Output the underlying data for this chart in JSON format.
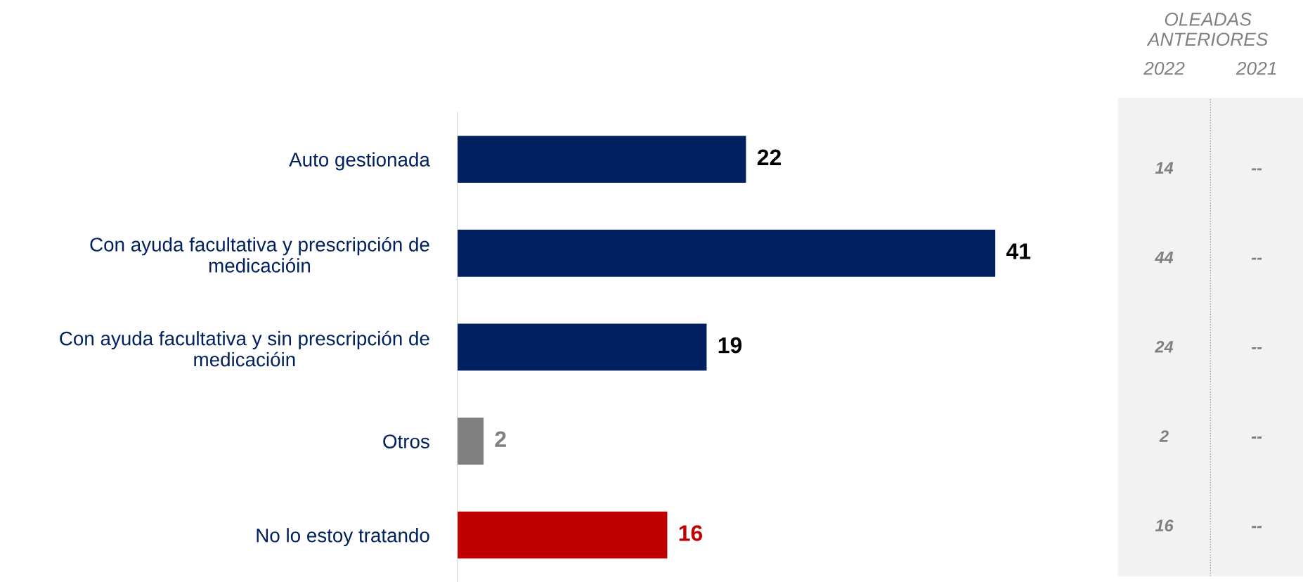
{
  "chart_data": [
    {
      "type": "bar",
      "orientation": "horizontal",
      "categories": [
        "Auto gestionada",
        "Con ayuda facultativa y prescripción de medicacióin",
        "Con ayuda facultativa y sin prescripción de medicacióin",
        "Otros",
        "No lo estoy tratando"
      ],
      "values": [
        22,
        41,
        19,
        2,
        16
      ],
      "colors": [
        "#002060",
        "#002060",
        "#002060",
        "#808080",
        "#c00000"
      ],
      "data_labels": true,
      "tick_labels": "y",
      "grid": false,
      "legend": false
    },
    {
      "type": "other",
      "title": "OLEADAS ANTERIORES",
      "categories": [
        "2022",
        "2021"
      ],
      "annotations": [
        "14",
        "--",
        "44",
        "--",
        "24",
        "--",
        "2",
        "--",
        "16",
        "--"
      ]
    }
  ]
}
